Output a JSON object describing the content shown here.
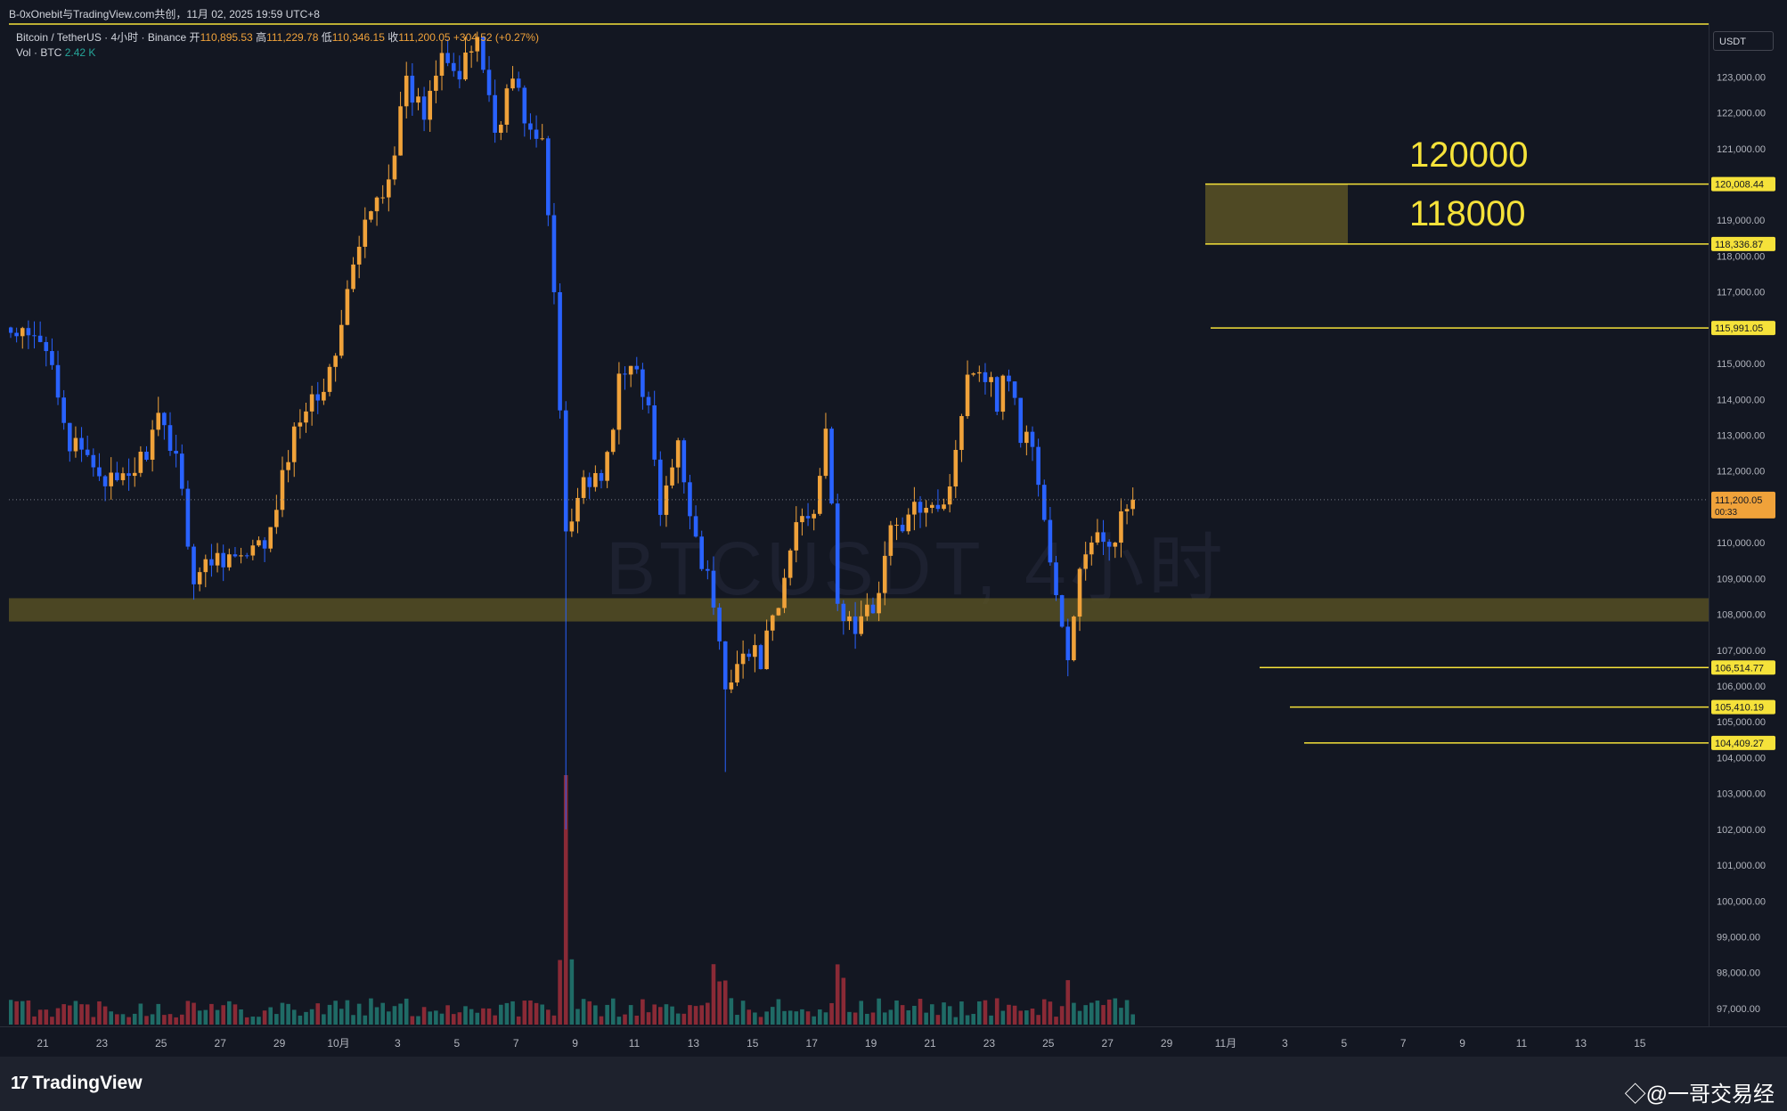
{
  "header": {
    "caption": "B-0xOnebit与TradingView.com共创，11月 02, 2025 19:59 UTC+8"
  },
  "legend": {
    "symbol": "Bitcoin / TetherUS · 4小时 · Binance",
    "open_label": "开",
    "open": "110,895.53",
    "high_label": "高",
    "high": "111,229.78",
    "low_label": "低",
    "low": "110,346.15",
    "close_label": "收",
    "close": "111,200.05",
    "change": "+304.52 (+0.27%)",
    "vol_label": "Vol · BTC",
    "vol_value": "2.42 K"
  },
  "background_watermark": "BTCUSDT, 4小时",
  "currency": "USDT",
  "annotations": {
    "zone_top_label": "120000",
    "zone_bottom_label": "118000"
  },
  "footer": {
    "brand": "TradingView",
    "watermark": "◇@一哥交易经"
  },
  "colors": {
    "background": "#131722",
    "up": "#f0a23a",
    "down": "#2962ff",
    "level_line": "#f5e23a",
    "zone_fill": "#5a5224",
    "volume_up": "#1f6b66",
    "volume_down": "#8a2a36"
  },
  "chart_data": {
    "type": "candlestick",
    "interval": "4小时",
    "ylim": [
      96500,
      124500
    ],
    "price_ticks": [
      "123,000.00",
      "122,000.00",
      "121,000.00",
      "120,000.00",
      "119,000.00",
      "118,000.00",
      "117,000.00",
      "116,000.00",
      "115,000.00",
      "114,000.00",
      "113,000.00",
      "112,000.00",
      "111,000.00",
      "110,000.00",
      "109,000.00",
      "108,000.00",
      "107,000.00",
      "106,000.00",
      "105,000.00",
      "104,000.00",
      "103,000.00",
      "102,000.00",
      "101,000.00",
      "100,000.00",
      "99,000.00",
      "98,000.00",
      "97,000.00"
    ],
    "x_ticks": [
      "21",
      "23",
      "25",
      "27",
      "29",
      "10月",
      "3",
      "5",
      "7",
      "9",
      "11",
      "13",
      "15",
      "17",
      "19",
      "21",
      "23",
      "25",
      "27",
      "29",
      "11月",
      "3",
      "5",
      "7",
      "9",
      "11",
      "13",
      "15"
    ],
    "price_levels": [
      {
        "price": 120008.44,
        "label": "120,008.44"
      },
      {
        "price": 118336.87,
        "label": "118,336.87"
      },
      {
        "price": 115991.05,
        "label": "115,991.05"
      },
      {
        "price": 106514.77,
        "label": "106,514.77"
      },
      {
        "price": 105410.19,
        "label": "105,410.19"
      },
      {
        "price": 104409.27,
        "label": "104,409.27"
      }
    ],
    "zones": [
      {
        "from": 118336.87,
        "to": 120008.44
      },
      {
        "from": 107800,
        "to": 108450
      }
    ],
    "current_price": {
      "price": 111200.05,
      "label": "111,200.05",
      "countdown": "00:33"
    },
    "path": [
      {
        "t": 0,
        "p": 115800
      },
      {
        "t": 4,
        "p": 115600
      },
      {
        "t": 7,
        "p": 115200
      },
      {
        "t": 10,
        "p": 112700
      },
      {
        "t": 14,
        "p": 112200
      },
      {
        "t": 18,
        "p": 111500
      },
      {
        "t": 22,
        "p": 112300
      },
      {
        "t": 25,
        "p": 113300
      },
      {
        "t": 28,
        "p": 112600
      },
      {
        "t": 31,
        "p": 109000
      },
      {
        "t": 35,
        "p": 109700
      },
      {
        "t": 40,
        "p": 109500
      },
      {
        "t": 44,
        "p": 110200
      },
      {
        "t": 47,
        "p": 112500
      },
      {
        "t": 50,
        "p": 114000
      },
      {
        "t": 54,
        "p": 114600
      },
      {
        "t": 57,
        "p": 117000
      },
      {
        "t": 60,
        "p": 118800
      },
      {
        "t": 64,
        "p": 120300
      },
      {
        "t": 67,
        "p": 122700
      },
      {
        "t": 70,
        "p": 122000
      },
      {
        "t": 73,
        "p": 124000
      },
      {
        "t": 76,
        "p": 122900
      },
      {
        "t": 79,
        "p": 124200
      },
      {
        "t": 82,
        "p": 121500
      },
      {
        "t": 85,
        "p": 123000
      },
      {
        "t": 88,
        "p": 121400
      },
      {
        "t": 90,
        "p": 121100
      },
      {
        "t": 92,
        "p": 117000
      },
      {
        "t": 94,
        "p": 110500
      },
      {
        "t": 97,
        "p": 111800
      },
      {
        "t": 100,
        "p": 111500
      },
      {
        "t": 103,
        "p": 114400
      },
      {
        "t": 106,
        "p": 115100
      },
      {
        "t": 108,
        "p": 113600
      },
      {
        "t": 110,
        "p": 110800
      },
      {
        "t": 113,
        "p": 112600
      },
      {
        "t": 116,
        "p": 110200
      },
      {
        "t": 119,
        "p": 108300
      },
      {
        "t": 121,
        "p": 105900
      },
      {
        "t": 123,
        "p": 106900
      },
      {
        "t": 127,
        "p": 106800
      },
      {
        "t": 130,
        "p": 108100
      },
      {
        "t": 133,
        "p": 110600
      },
      {
        "t": 136,
        "p": 111000
      },
      {
        "t": 138,
        "p": 113300
      },
      {
        "t": 140,
        "p": 108200
      },
      {
        "t": 143,
        "p": 107600
      },
      {
        "t": 146,
        "p": 108200
      },
      {
        "t": 149,
        "p": 110300
      },
      {
        "t": 152,
        "p": 110600
      },
      {
        "t": 155,
        "p": 111300
      },
      {
        "t": 158,
        "p": 111100
      },
      {
        "t": 160,
        "p": 112400
      },
      {
        "t": 162,
        "p": 115000
      },
      {
        "t": 165,
        "p": 114800
      },
      {
        "t": 167,
        "p": 114000
      },
      {
        "t": 169,
        "p": 114800
      },
      {
        "t": 171,
        "p": 113000
      },
      {
        "t": 173,
        "p": 112800
      },
      {
        "t": 175,
        "p": 110600
      },
      {
        "t": 177,
        "p": 108400
      },
      {
        "t": 179,
        "p": 106600
      },
      {
        "t": 181,
        "p": 109400
      },
      {
        "t": 184,
        "p": 110000
      },
      {
        "t": 187,
        "p": 110300
      },
      {
        "t": 190,
        "p": 111200.05
      }
    ]
  }
}
